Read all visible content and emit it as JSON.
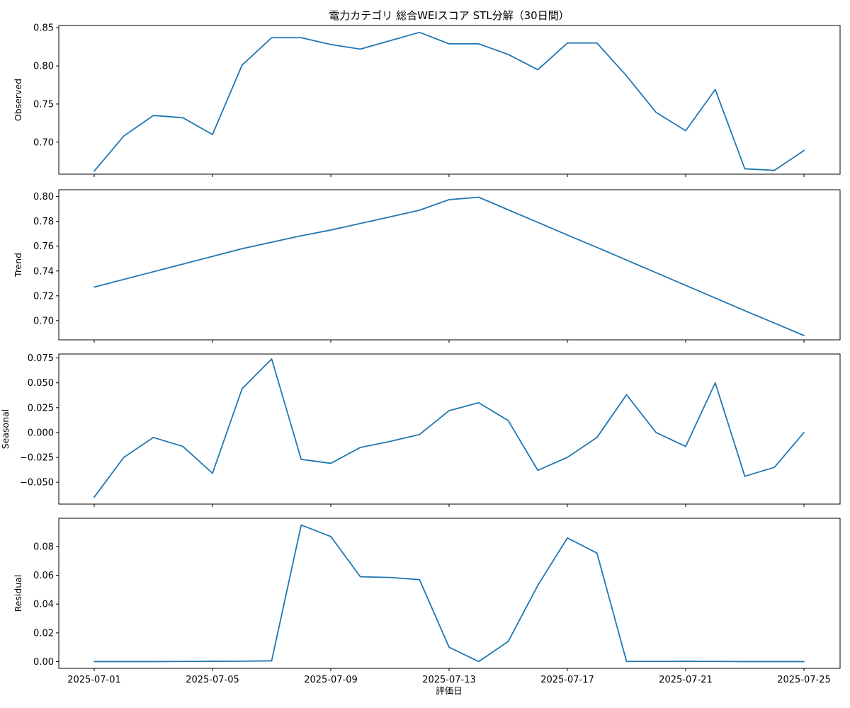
{
  "figure": {
    "title": "電力カテゴリ 総合WEIスコア STL分解（30日間）",
    "xlabel": "評価日"
  },
  "chart_data": [
    {
      "type": "line",
      "ylabel": "Observed",
      "x": [
        "2025-07-01",
        "2025-07-02",
        "2025-07-03",
        "2025-07-04",
        "2025-07-05",
        "2025-07-06",
        "2025-07-07",
        "2025-07-08",
        "2025-07-09",
        "2025-07-10",
        "2025-07-11",
        "2025-07-12",
        "2025-07-13",
        "2025-07-14",
        "2025-07-15",
        "2025-07-16",
        "2025-07-17",
        "2025-07-18",
        "2025-07-19",
        "2025-07-20",
        "2025-07-21",
        "2025-07-22",
        "2025-07-23",
        "2025-07-24",
        "2025-07-25"
      ],
      "values": [
        0.662,
        0.708,
        0.735,
        0.732,
        0.71,
        0.801,
        0.837,
        0.837,
        0.828,
        0.822,
        0.833,
        0.844,
        0.829,
        0.829,
        0.815,
        0.795,
        0.83,
        0.83,
        0.787,
        0.739,
        0.715,
        0.769,
        0.665,
        0.663,
        0.689
      ],
      "ylim": [
        0.658,
        0.853
      ],
      "yticks": [
        0.7,
        0.75,
        0.8,
        0.85
      ],
      "ytick_labels": [
        "0.70",
        "0.75",
        "0.80",
        "0.85"
      ],
      "color": "#1f77b4"
    },
    {
      "type": "line",
      "ylabel": "Trend",
      "x": [
        "2025-07-01",
        "2025-07-02",
        "2025-07-03",
        "2025-07-04",
        "2025-07-05",
        "2025-07-06",
        "2025-07-07",
        "2025-07-08",
        "2025-07-09",
        "2025-07-10",
        "2025-07-11",
        "2025-07-12",
        "2025-07-13",
        "2025-07-14",
        "2025-07-15",
        "2025-07-16",
        "2025-07-17",
        "2025-07-18",
        "2025-07-19",
        "2025-07-20",
        "2025-07-21",
        "2025-07-22",
        "2025-07-23",
        "2025-07-24",
        "2025-07-25"
      ],
      "values": [
        0.727,
        0.7332,
        0.7394,
        0.7456,
        0.7518,
        0.758,
        0.7632,
        0.7684,
        0.773,
        0.7783,
        0.7836,
        0.789,
        0.7975,
        0.7995,
        0.7893,
        0.7792,
        0.769,
        0.759,
        0.7488,
        0.7386,
        0.7284,
        0.7182,
        0.708,
        0.698,
        0.688
      ],
      "ylim": [
        0.6845,
        0.8055
      ],
      "yticks": [
        0.7,
        0.72,
        0.74,
        0.76,
        0.78,
        0.8
      ],
      "ytick_labels": [
        "0.70",
        "0.72",
        "0.74",
        "0.76",
        "0.78",
        "0.80"
      ],
      "color": "#1f77b4"
    },
    {
      "type": "line",
      "ylabel": "Seasonal",
      "x": [
        "2025-07-01",
        "2025-07-02",
        "2025-07-03",
        "2025-07-04",
        "2025-07-05",
        "2025-07-06",
        "2025-07-07",
        "2025-07-08",
        "2025-07-09",
        "2025-07-10",
        "2025-07-11",
        "2025-07-12",
        "2025-07-13",
        "2025-07-14",
        "2025-07-15",
        "2025-07-16",
        "2025-07-17",
        "2025-07-18",
        "2025-07-19",
        "2025-07-20",
        "2025-07-21",
        "2025-07-22",
        "2025-07-23",
        "2025-07-24",
        "2025-07-25"
      ],
      "values": [
        -0.065,
        -0.025,
        -0.005,
        -0.014,
        -0.041,
        0.044,
        0.074,
        -0.027,
        -0.031,
        -0.015,
        -0.009,
        -0.002,
        0.022,
        0.03,
        0.012,
        -0.038,
        -0.025,
        -0.005,
        0.038,
        0.0,
        -0.014,
        0.05,
        -0.044,
        -0.035,
        0.0
      ],
      "ylim": [
        -0.072,
        0.079
      ],
      "yticks": [
        -0.05,
        -0.025,
        0.0,
        0.025,
        0.05,
        0.075
      ],
      "ytick_labels": [
        "−0.050",
        "−0.025",
        "0.000",
        "0.025",
        "0.050",
        "0.075"
      ],
      "color": "#1f77b4"
    },
    {
      "type": "line",
      "ylabel": "Residual",
      "x": [
        "2025-07-01",
        "2025-07-02",
        "2025-07-03",
        "2025-07-04",
        "2025-07-05",
        "2025-07-06",
        "2025-07-07",
        "2025-07-08",
        "2025-07-09",
        "2025-07-10",
        "2025-07-11",
        "2025-07-12",
        "2025-07-13",
        "2025-07-14",
        "2025-07-15",
        "2025-07-16",
        "2025-07-17",
        "2025-07-18",
        "2025-07-19",
        "2025-07-20",
        "2025-07-21",
        "2025-07-22",
        "2025-07-23",
        "2025-07-24",
        "2025-07-25"
      ],
      "values": [
        0.0,
        0.0,
        0.0,
        0.0001,
        0.0002,
        0.0003,
        0.0005,
        0.095,
        0.087,
        0.059,
        0.0585,
        0.057,
        0.01,
        0.0,
        0.014,
        0.053,
        0.086,
        0.0755,
        0.0001,
        0.0001,
        0.0002,
        0.0001,
        0.0,
        0.0,
        0.0
      ],
      "ylim": [
        -0.0047,
        0.0997
      ],
      "yticks": [
        0.0,
        0.02,
        0.04,
        0.06,
        0.08
      ],
      "ytick_labels": [
        "0.00",
        "0.02",
        "0.04",
        "0.06",
        "0.08"
      ],
      "color": "#1f77b4"
    }
  ],
  "xaxis": {
    "tick_dates": [
      "2025-07-01",
      "2025-07-05",
      "2025-07-09",
      "2025-07-13",
      "2025-07-17",
      "2025-07-21",
      "2025-07-25"
    ],
    "tick_labels": [
      "2025-07-01",
      "2025-07-05",
      "2025-07-09",
      "2025-07-13",
      "2025-07-17",
      "2025-07-21",
      "2025-07-25"
    ]
  }
}
